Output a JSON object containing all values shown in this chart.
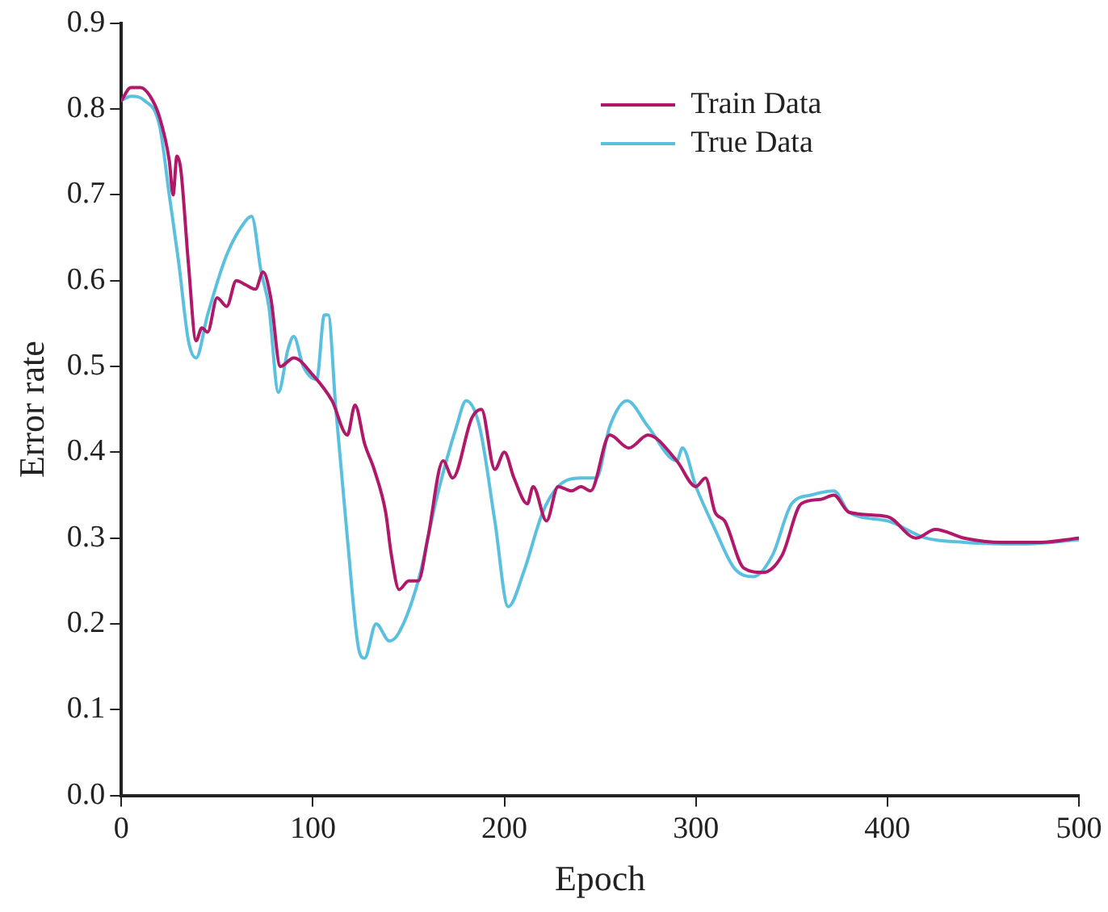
{
  "chart_data": {
    "type": "line",
    "xlabel": "Epoch",
    "ylabel": "Error rate",
    "xlim": [
      0,
      500
    ],
    "xticks": [
      0,
      100,
      200,
      300,
      400,
      500
    ],
    "ylim": [
      0,
      0.9
    ],
    "yticks": [
      {
        "value": 0,
        "label": "0.0"
      },
      0.1,
      0.2,
      0.3,
      0.4,
      0.5,
      0.6,
      0.7,
      0.8,
      0.9
    ],
    "grid": false,
    "legend": "top right",
    "marker": "none",
    "line_style": "solid",
    "series": [
      {
        "name": "Train Data",
        "color": "#b0186a",
        "x": [
          0,
          5,
          10,
          15,
          20,
          25,
          27,
          29,
          31,
          35,
          39,
          42,
          45,
          50,
          55,
          60,
          65,
          70,
          74,
          78,
          83,
          90,
          100,
          110,
          118,
          122,
          127,
          132,
          138,
          141,
          145,
          150,
          155,
          160,
          168,
          173,
          183,
          188,
          195,
          200,
          205,
          212,
          215,
          222,
          228,
          235,
          240,
          245,
          255,
          265,
          275,
          290,
          300,
          305,
          310,
          315,
          325,
          335,
          345,
          355,
          365,
          372,
          380,
          400,
          415,
          425,
          440,
          460,
          480,
          500
        ],
        "values": [
          0.81,
          0.825,
          0.825,
          0.815,
          0.79,
          0.74,
          0.7,
          0.745,
          0.73,
          0.62,
          0.53,
          0.545,
          0.54,
          0.58,
          0.57,
          0.6,
          0.595,
          0.59,
          0.61,
          0.58,
          0.5,
          0.51,
          0.49,
          0.46,
          0.42,
          0.455,
          0.41,
          0.38,
          0.33,
          0.28,
          0.24,
          0.25,
          0.25,
          0.3,
          0.39,
          0.37,
          0.44,
          0.45,
          0.38,
          0.4,
          0.37,
          0.34,
          0.36,
          0.32,
          0.36,
          0.355,
          0.36,
          0.355,
          0.42,
          0.405,
          0.42,
          0.39,
          0.36,
          0.37,
          0.33,
          0.32,
          0.265,
          0.26,
          0.28,
          0.34,
          0.345,
          0.35,
          0.33,
          0.325,
          0.3,
          0.31,
          0.3,
          0.295,
          0.295,
          0.3
        ]
      },
      {
        "name": "True Data",
        "color": "#5bc0de",
        "x": [
          0,
          5,
          12,
          20,
          25,
          30,
          35,
          39,
          45,
          55,
          65,
          68,
          73,
          77,
          82,
          87,
          90,
          95,
          102,
          106,
          108,
          112,
          118,
          124,
          127,
          133,
          140,
          145,
          155,
          165,
          175,
          180,
          187,
          195,
          202,
          210,
          220,
          228,
          240,
          248,
          255,
          264,
          275,
          290,
          293,
          300,
          310,
          320,
          330,
          340,
          350,
          360,
          372,
          380,
          400,
          420,
          440,
          470,
          500
        ],
        "values": [
          0.81,
          0.815,
          0.81,
          0.78,
          0.7,
          0.62,
          0.53,
          0.51,
          0.56,
          0.63,
          0.67,
          0.675,
          0.61,
          0.57,
          0.47,
          0.52,
          0.535,
          0.5,
          0.485,
          0.56,
          0.56,
          0.45,
          0.3,
          0.17,
          0.16,
          0.2,
          0.18,
          0.19,
          0.25,
          0.35,
          0.43,
          0.46,
          0.43,
          0.32,
          0.22,
          0.26,
          0.33,
          0.36,
          0.37,
          0.37,
          0.43,
          0.46,
          0.43,
          0.39,
          0.405,
          0.36,
          0.31,
          0.265,
          0.255,
          0.28,
          0.34,
          0.35,
          0.355,
          0.33,
          0.32,
          0.3,
          0.295,
          0.293,
          0.298
        ]
      }
    ]
  }
}
